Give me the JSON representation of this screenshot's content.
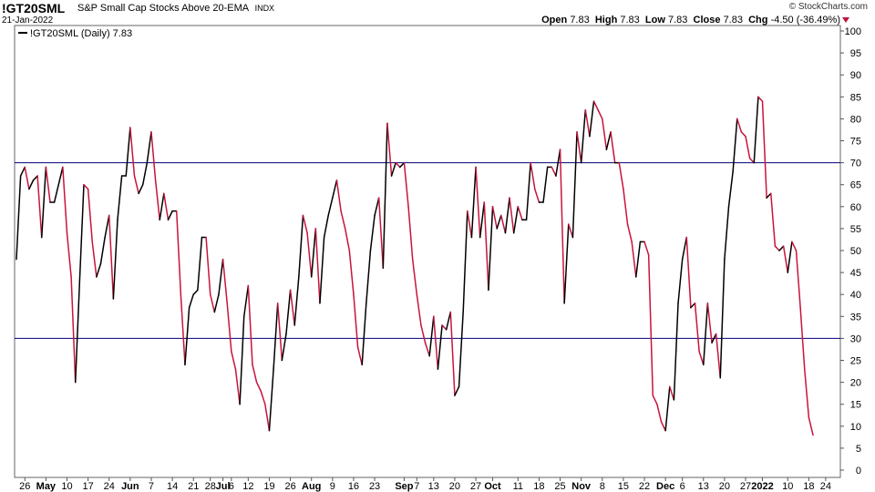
{
  "header": {
    "symbol": "!GT20SML",
    "description": "S&P Small Cap Stocks Above 20-EMA",
    "exchange": "INDX",
    "date": "21-Jan-2022",
    "copyright": "© StockCharts.com",
    "open_label": "Open",
    "open": "7.83",
    "high_label": "High",
    "high": "7.83",
    "low_label": "Low",
    "low": "7.83",
    "close_label": "Close",
    "close": "7.83",
    "chg_label": "Chg",
    "chg": "-4.50 (-36.49%)"
  },
  "legend": {
    "text": "!GT20SML (Daily) 7.83"
  },
  "colors": {
    "up": "#000000",
    "down": "#c8143c",
    "hline": "#00007a",
    "axis": "#555555"
  },
  "chart_data": {
    "type": "line",
    "ylim": [
      0,
      100
    ],
    "yticks": [
      0,
      5,
      10,
      15,
      20,
      25,
      30,
      35,
      40,
      45,
      50,
      55,
      60,
      65,
      70,
      75,
      80,
      85,
      90,
      95,
      100
    ],
    "hlines": [
      70,
      30
    ],
    "x_ticks": [
      {
        "label": "26",
        "i": 2,
        "bold": false
      },
      {
        "label": "May",
        "i": 7,
        "bold": true
      },
      {
        "label": "10",
        "i": 12,
        "bold": false
      },
      {
        "label": "17",
        "i": 17,
        "bold": false
      },
      {
        "label": "24",
        "i": 22,
        "bold": false
      },
      {
        "label": "Jun",
        "i": 27,
        "bold": true
      },
      {
        "label": "7",
        "i": 32,
        "bold": false
      },
      {
        "label": "14",
        "i": 37,
        "bold": false
      },
      {
        "label": "21",
        "i": 42,
        "bold": false
      },
      {
        "label": "28",
        "i": 46,
        "bold": false
      },
      {
        "label": "Jul",
        "i": 49,
        "bold": true
      },
      {
        "label": "6",
        "i": 51,
        "bold": false
      },
      {
        "label": "12",
        "i": 55,
        "bold": false
      },
      {
        "label": "19",
        "i": 60,
        "bold": false
      },
      {
        "label": "26",
        "i": 65,
        "bold": false
      },
      {
        "label": "Aug",
        "i": 70,
        "bold": true
      },
      {
        "label": "9",
        "i": 75,
        "bold": false
      },
      {
        "label": "16",
        "i": 80,
        "bold": false
      },
      {
        "label": "23",
        "i": 85,
        "bold": false
      },
      {
        "label": "Sep",
        "i": 92,
        "bold": true
      },
      {
        "label": "7",
        "i": 95,
        "bold": false
      },
      {
        "label": "13",
        "i": 99,
        "bold": false
      },
      {
        "label": "20",
        "i": 104,
        "bold": false
      },
      {
        "label": "27",
        "i": 109,
        "bold": false
      },
      {
        "label": "Oct",
        "i": 113,
        "bold": true
      },
      {
        "label": "11",
        "i": 119,
        "bold": false
      },
      {
        "label": "18",
        "i": 124,
        "bold": false
      },
      {
        "label": "25",
        "i": 129,
        "bold": false
      },
      {
        "label": "Nov",
        "i": 134,
        "bold": true
      },
      {
        "label": "8",
        "i": 139,
        "bold": false
      },
      {
        "label": "15",
        "i": 144,
        "bold": false
      },
      {
        "label": "22",
        "i": 149,
        "bold": false
      },
      {
        "label": "Dec",
        "i": 154,
        "bold": true
      },
      {
        "label": "6",
        "i": 158,
        "bold": false
      },
      {
        "label": "13",
        "i": 163,
        "bold": false
      },
      {
        "label": "20",
        "i": 168,
        "bold": false
      },
      {
        "label": "27",
        "i": 173,
        "bold": false
      },
      {
        "label": "2022",
        "i": 177,
        "bold": true
      },
      {
        "label": "10",
        "i": 183,
        "bold": false
      },
      {
        "label": "18",
        "i": 188,
        "bold": false
      },
      {
        "label": "24",
        "i": 192,
        "bold": false
      }
    ],
    "values": [
      48,
      67,
      69,
      64,
      66,
      67,
      53,
      69,
      61,
      61,
      65,
      69,
      54,
      44,
      20,
      43,
      65,
      64,
      52,
      44,
      47,
      53,
      58,
      39,
      57,
      67,
      67,
      78,
      67,
      63,
      65,
      70,
      77,
      66,
      57,
      63,
      57,
      59,
      59,
      40,
      24,
      37,
      40,
      41,
      53,
      53,
      40,
      36,
      40,
      48,
      38,
      27,
      23,
      15,
      35,
      42,
      24,
      20,
      18,
      15,
      9,
      23,
      38,
      25,
      31,
      41,
      33,
      44,
      58,
      54,
      44,
      55,
      38,
      53,
      58,
      62,
      66,
      59,
      55,
      50,
      40,
      28,
      24,
      38,
      50,
      58,
      62,
      46,
      79,
      67,
      70,
      69,
      70,
      60,
      48,
      40,
      33,
      29,
      26,
      35,
      23,
      33,
      32,
      36,
      17,
      19,
      36,
      59,
      53,
      69,
      53,
      61,
      41,
      60,
      55,
      58,
      54,
      62,
      54,
      60,
      57,
      57,
      70,
      64,
      61,
      61,
      69,
      69,
      67,
      73,
      38,
      56,
      53,
      77,
      70,
      82,
      76,
      84,
      82,
      80,
      73,
      77,
      70,
      70,
      64,
      56,
      52,
      44,
      52,
      52,
      49,
      17,
      15,
      11,
      9,
      19,
      16,
      38,
      48,
      53,
      37,
      38,
      27,
      24,
      38,
      29,
      31,
      21,
      48,
      60,
      68,
      80,
      77,
      76,
      71,
      70,
      85,
      84,
      62,
      63,
      51,
      50,
      51,
      45,
      52,
      50,
      37,
      23,
      12,
      8
    ]
  }
}
